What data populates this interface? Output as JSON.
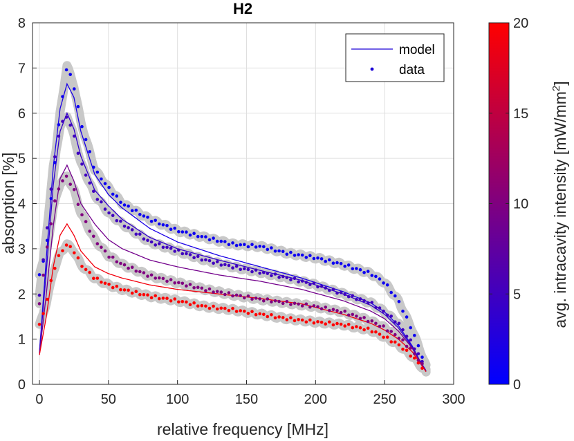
{
  "chart_data": {
    "type": "line",
    "title": "H2",
    "xlabel": "relative frequency [MHz]",
    "ylabel": "absorption [%]",
    "xlim": [
      -5,
      300
    ],
    "ylim": [
      0,
      8
    ],
    "x_ticks": [
      "0",
      "50",
      "100",
      "150",
      "200",
      "250",
      "300"
    ],
    "y_ticks": [
      "0",
      "1",
      "2",
      "3",
      "4",
      "5",
      "6",
      "7",
      "8"
    ],
    "grid": true,
    "legend": {
      "placement": "top-right",
      "entries": [
        {
          "label": "model",
          "style": "line",
          "color": "#1a00d6"
        },
        {
          "label": "data",
          "style": "marker",
          "color": "#1a00d6"
        }
      ]
    },
    "colorbar": {
      "label": "avg. intracavity intensity [mW/mm",
      "label_sup": "2",
      "label_end": "]",
      "range": [
        0,
        20
      ],
      "ticks": [
        "0",
        "5",
        "10",
        "15",
        "20"
      ],
      "color_low": "#0000ff",
      "color_high": "#ff0000"
    },
    "band_color": "#c8c8c8",
    "model_curves": [
      {
        "intensity": 2,
        "x": [
          0,
          5,
          10,
          15,
          20,
          25,
          30,
          40,
          50,
          60,
          80,
          100,
          130,
          160,
          190,
          220,
          240,
          250,
          260,
          270,
          275,
          280
        ],
        "y": [
          0.7,
          2.8,
          4.8,
          6.1,
          6.65,
          6.35,
          5.6,
          4.65,
          4.2,
          3.9,
          3.45,
          3.15,
          2.85,
          2.6,
          2.35,
          2.05,
          1.8,
          1.6,
          1.3,
          0.85,
          0.55,
          0.3
        ]
      },
      {
        "intensity": 4,
        "x": [
          0,
          5,
          10,
          15,
          20,
          25,
          30,
          40,
          50,
          60,
          80,
          100,
          130,
          160,
          190,
          220,
          240,
          250,
          260,
          270,
          275,
          280
        ],
        "y": [
          0.7,
          2.5,
          4.4,
          5.6,
          6.0,
          5.65,
          5.05,
          4.3,
          3.95,
          3.65,
          3.25,
          3.0,
          2.75,
          2.52,
          2.3,
          2.0,
          1.75,
          1.55,
          1.25,
          0.82,
          0.55,
          0.3
        ]
      },
      {
        "intensity": 9,
        "x": [
          0,
          5,
          10,
          15,
          20,
          25,
          30,
          40,
          50,
          60,
          80,
          100,
          130,
          160,
          190,
          220,
          240,
          250,
          260,
          270,
          275,
          280
        ],
        "y": [
          0.65,
          2.0,
          3.5,
          4.55,
          4.85,
          4.5,
          4.0,
          3.55,
          3.2,
          3.0,
          2.75,
          2.6,
          2.42,
          2.28,
          2.1,
          1.85,
          1.62,
          1.45,
          1.18,
          0.8,
          0.52,
          0.28
        ]
      },
      {
        "intensity": 19,
        "x": [
          0,
          5,
          10,
          15,
          20,
          25,
          30,
          40,
          50,
          60,
          80,
          100,
          130,
          160,
          190,
          220,
          240,
          250,
          260,
          270,
          275,
          280
        ],
        "y": [
          0.65,
          1.5,
          2.6,
          3.3,
          3.55,
          3.3,
          2.95,
          2.6,
          2.45,
          2.35,
          2.2,
          2.1,
          2.0,
          1.9,
          1.78,
          1.55,
          1.35,
          1.2,
          1.0,
          0.72,
          0.5,
          0.28
        ]
      }
    ],
    "data_series": [
      {
        "intensity": 1,
        "x": [
          0,
          5,
          10,
          15,
          20,
          25,
          30,
          40,
          50,
          60,
          80,
          100,
          120,
          140,
          160,
          180,
          200,
          220,
          240,
          250,
          260,
          270,
          280
        ],
        "y": [
          2.4,
          3.0,
          4.6,
          6.0,
          7.05,
          6.6,
          5.8,
          4.75,
          4.35,
          4.0,
          3.65,
          3.4,
          3.25,
          3.1,
          3.05,
          2.9,
          2.8,
          2.65,
          2.45,
          2.25,
          1.85,
          1.2,
          0.4
        ]
      },
      {
        "intensity": 5,
        "x": [
          0,
          5,
          10,
          15,
          20,
          25,
          30,
          40,
          50,
          60,
          80,
          100,
          120,
          140,
          160,
          180,
          200,
          220,
          240,
          250,
          260,
          270,
          280
        ],
        "y": [
          2.0,
          3.3,
          4.8,
          5.7,
          5.95,
          5.5,
          4.9,
          4.2,
          3.8,
          3.55,
          3.15,
          2.95,
          2.75,
          2.6,
          2.48,
          2.35,
          2.2,
          2.0,
          1.8,
          1.6,
          1.35,
          0.9,
          0.35
        ]
      },
      {
        "intensity": 10,
        "x": [
          0,
          5,
          10,
          15,
          20,
          25,
          30,
          40,
          50,
          60,
          80,
          100,
          120,
          140,
          160,
          180,
          200,
          220,
          240,
          250,
          260,
          270,
          280
        ],
        "y": [
          1.8,
          2.9,
          3.9,
          4.45,
          4.6,
          4.3,
          3.8,
          3.2,
          2.85,
          2.65,
          2.4,
          2.25,
          2.1,
          1.98,
          1.88,
          1.8,
          1.72,
          1.6,
          1.4,
          1.25,
          1.05,
          0.75,
          0.3
        ]
      },
      {
        "intensity": 20,
        "x": [
          0,
          5,
          10,
          15,
          20,
          25,
          30,
          40,
          50,
          60,
          80,
          100,
          120,
          140,
          160,
          180,
          200,
          220,
          240,
          250,
          260,
          270,
          280
        ],
        "y": [
          1.3,
          1.8,
          2.5,
          2.9,
          3.1,
          2.95,
          2.65,
          2.35,
          2.2,
          2.1,
          1.95,
          1.85,
          1.72,
          1.65,
          1.55,
          1.45,
          1.38,
          1.32,
          1.2,
          1.05,
          0.88,
          0.62,
          0.28
        ]
      }
    ]
  }
}
